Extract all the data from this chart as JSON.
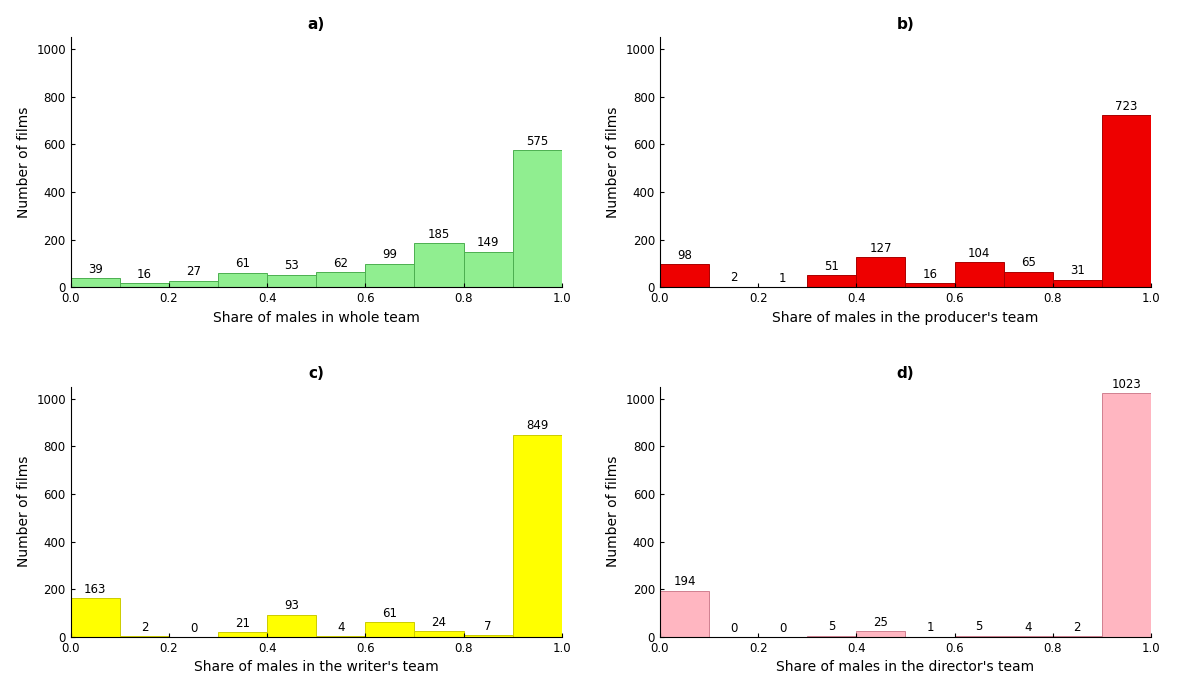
{
  "subplots": [
    {
      "label": "a)",
      "xlabel": "Share of males in whole team",
      "ylabel": "Number of films",
      "color": "#90EE90",
      "edgecolor": "#4CAF50",
      "values": [
        39,
        16,
        27,
        61,
        53,
        62,
        99,
        185,
        149,
        575
      ],
      "bin_edges": [
        0.0,
        0.1,
        0.2,
        0.3,
        0.4,
        0.5,
        0.6,
        0.7,
        0.8,
        0.9,
        1.0
      ],
      "ylim": [
        0,
        1050
      ],
      "yticks": [
        0,
        200,
        400,
        600,
        800,
        1000
      ]
    },
    {
      "label": "b)",
      "xlabel": "Share of males in the producer's team",
      "ylabel": "Number of films",
      "color": "#EE0000",
      "edgecolor": "#AA0000",
      "values": [
        98,
        2,
        1,
        51,
        127,
        16,
        104,
        65,
        31,
        723
      ],
      "bin_edges": [
        0.0,
        0.1,
        0.2,
        0.3,
        0.4,
        0.5,
        0.6,
        0.7,
        0.8,
        0.9,
        1.0
      ],
      "ylim": [
        0,
        1050
      ],
      "yticks": [
        0,
        200,
        400,
        600,
        800,
        1000
      ]
    },
    {
      "label": "c)",
      "xlabel": "Share of males in the writer's team",
      "ylabel": "Number of films",
      "color": "#FFFF00",
      "edgecolor": "#CCCC00",
      "values": [
        163,
        2,
        0,
        21,
        93,
        4,
        61,
        24,
        7,
        849
      ],
      "bin_edges": [
        0.0,
        0.1,
        0.2,
        0.3,
        0.4,
        0.5,
        0.6,
        0.7,
        0.8,
        0.9,
        1.0
      ],
      "ylim": [
        0,
        1050
      ],
      "yticks": [
        0,
        200,
        400,
        600,
        800,
        1000
      ]
    },
    {
      "label": "d)",
      "xlabel": "Share of males in the director's team",
      "ylabel": "Number of films",
      "color": "#FFB6C1",
      "edgecolor": "#D08090",
      "values": [
        194,
        0,
        0,
        5,
        25,
        1,
        5,
        4,
        2,
        1023
      ],
      "bin_edges": [
        0.0,
        0.1,
        0.2,
        0.3,
        0.4,
        0.5,
        0.6,
        0.7,
        0.8,
        0.9,
        1.0
      ],
      "ylim": [
        0,
        1050
      ],
      "yticks": [
        0,
        200,
        400,
        600,
        800,
        1000
      ]
    }
  ],
  "background_color": "#ffffff",
  "label_fontsize": 10,
  "tick_fontsize": 8.5,
  "annotation_fontsize": 8.5,
  "title_fontsize": 11
}
